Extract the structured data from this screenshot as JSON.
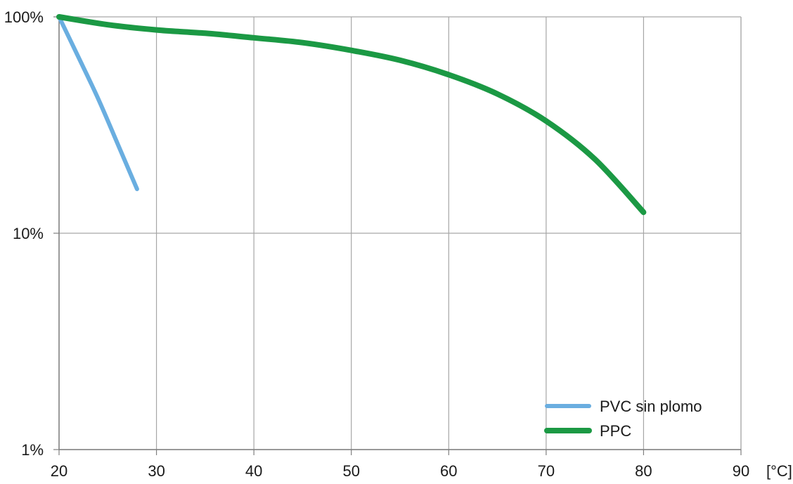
{
  "chart_data": {
    "type": "line",
    "title": "",
    "xlabel": "[°C]",
    "ylabel": "",
    "xlim": [
      20,
      90
    ],
    "ylim": [
      1,
      100
    ],
    "y_scale": "log",
    "grid": true,
    "legend_position": "bottom-right",
    "x_ticks": [
      "20",
      "30",
      "40",
      "50",
      "60",
      "70",
      "80",
      "90"
    ],
    "y_ticks": [
      {
        "value": 100,
        "label": "100%"
      },
      {
        "value": 10,
        "label": "10%"
      },
      {
        "value": 1,
        "label": "1%"
      }
    ],
    "series": [
      {
        "name": "PVC sin plomo",
        "color": "#6aaee0",
        "x": [
          20,
          22,
          24,
          26,
          28
        ],
        "y": [
          100,
          65,
          42,
          26,
          16
        ]
      },
      {
        "name": "PPC",
        "color": "#1b9944",
        "x": [
          20,
          25,
          30,
          35,
          40,
          45,
          50,
          55,
          60,
          65,
          70,
          75,
          80
        ],
        "y": [
          100,
          92,
          87,
          84,
          80,
          76,
          70,
          63,
          54,
          44,
          33,
          22,
          12.5
        ]
      }
    ]
  }
}
